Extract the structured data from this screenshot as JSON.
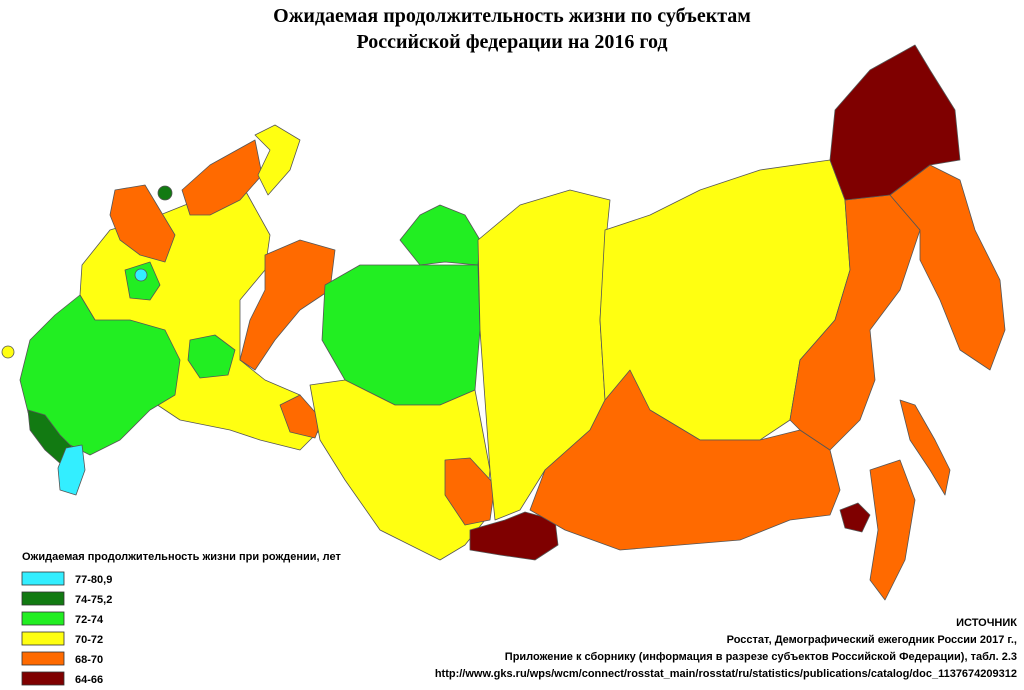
{
  "title": [
    "Ожидаемая продолжительность жизни по субъектам",
    "Российской федерации на 2016 год"
  ],
  "legend": {
    "title": "Ожидаемая продолжительность жизни при рождении, лет",
    "items": [
      {
        "label": "77-80,9",
        "color": "#33eeff"
      },
      {
        "label": "74-75,2",
        "color": "#127a12"
      },
      {
        "label": "72-74",
        "color": "#22ee22"
      },
      {
        "label": "70-72",
        "color": "#ffff11"
      },
      {
        "label": "68-70",
        "color": "#ff6a00"
      },
      {
        "label": "64-66",
        "color": "#7f0000"
      }
    ]
  },
  "source": [
    "ИСТОЧНИК",
    "Росстат, Демографический ежегодник России 2017 г.,",
    "Приложение к сборнику (информация в разрезе субъектов Российской Федерации), табл. 2.3",
    "http://www.gks.ru/wps/wcm/connect/rosstat_main/rosstat/ru/statistics/publications/catalog/doc_1137674209312"
  ]
}
